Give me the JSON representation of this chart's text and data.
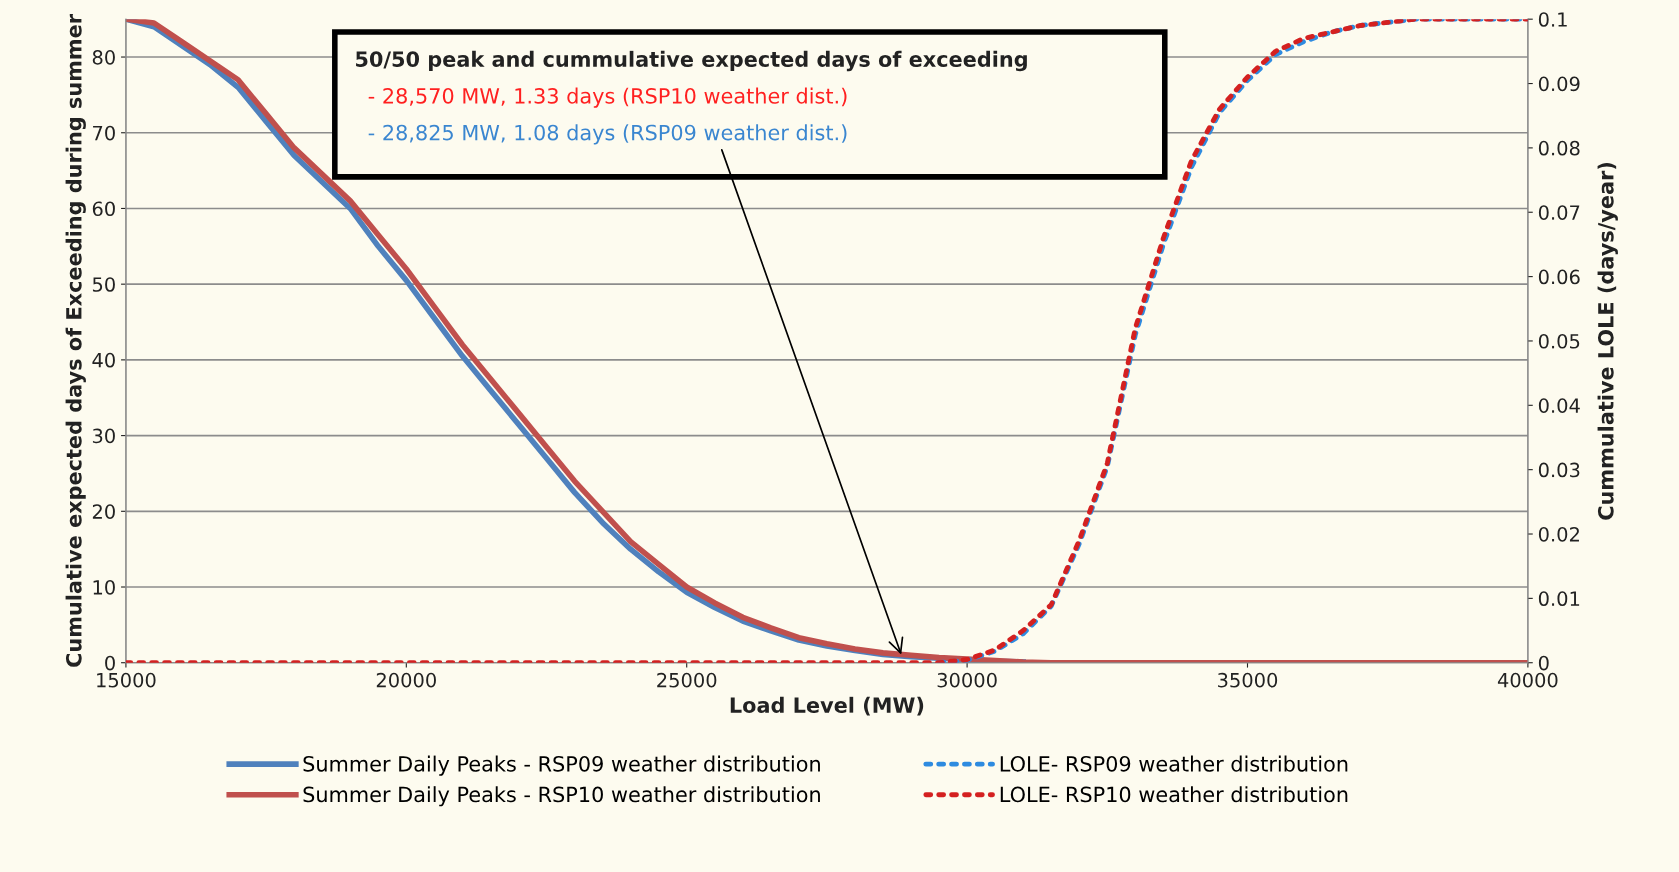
{
  "chart_data": {
    "type": "line",
    "xlabel": "Load Level (MW)",
    "ylabel": "Cumulative expected days of Exceeding during summer",
    "y2label": "Cummulative LOLE (days/year)",
    "x": [
      15000,
      15500,
      16000,
      16500,
      17000,
      17500,
      18000,
      18500,
      19000,
      19500,
      20000,
      20500,
      21000,
      21500,
      22000,
      22500,
      23000,
      23500,
      24000,
      24500,
      25000,
      25500,
      26000,
      26500,
      27000,
      27500,
      28000,
      28500,
      29000,
      29500,
      30000,
      30500,
      31000,
      31500,
      32000,
      32500,
      33000,
      33500,
      34000,
      34500,
      35000,
      35500,
      36000,
      36500,
      37000,
      37500,
      38000,
      39000,
      40000
    ],
    "series": [
      {
        "name": "Summer Daily Peaks - RSP09 weather distribution",
        "color": "#4f81bd",
        "line_style": "solid",
        "values": [
          85,
          84,
          81.5,
          79,
          76,
          71.5,
          67,
          63.5,
          60,
          55,
          50.5,
          45.5,
          40.5,
          36,
          31.5,
          27,
          22.5,
          18.5,
          15,
          12,
          9.3,
          7.3,
          5.5,
          4.2,
          3,
          2.2,
          1.6,
          1.1,
          0.8,
          0.6,
          0.4,
          0.2,
          0.1,
          null,
          null,
          null,
          null,
          null,
          null,
          null,
          null,
          null,
          null,
          null,
          null,
          null,
          null,
          null,
          null
        ]
      },
      {
        "name": "Summer Daily Peaks - RSP10 weather distribution",
        "color": "#c0504d",
        "line_style": "solid",
        "values": [
          85,
          84.5,
          82,
          79.5,
          77,
          72.5,
          68,
          64.5,
          61,
          56.5,
          52,
          47,
          42,
          37.5,
          33,
          28.5,
          24,
          20,
          16,
          13,
          10,
          7.9,
          6,
          4.6,
          3.3,
          2.5,
          1.8,
          1.3,
          1,
          0.7,
          0.5,
          0.3,
          0.1,
          0,
          0,
          0,
          0,
          0,
          0,
          0,
          0,
          0,
          0,
          0,
          0,
          0,
          0,
          0,
          0
        ]
      },
      {
        "name": "LOLE- RSP09 weather distribution",
        "color": "#2e8be0",
        "line_style": "dotted",
        "axis": "y2",
        "values": [
          null,
          null,
          null,
          null,
          null,
          null,
          null,
          null,
          null,
          null,
          null,
          null,
          null,
          null,
          null,
          null,
          null,
          null,
          null,
          null,
          null,
          null,
          null,
          null,
          null,
          null,
          null,
          null,
          null,
          0,
          0.0004,
          0.0018,
          0.0045,
          0.0088,
          0.0185,
          0.0305,
          0.051,
          0.065,
          0.077,
          0.0855,
          0.0905,
          0.0945,
          0.0965,
          0.098,
          0.099,
          0.0995,
          0.1,
          0.1,
          0.1
        ]
      },
      {
        "name": "LOLE- RSP10 weather distribution",
        "color": "#d42020",
        "line_style": "dotted",
        "axis": "y2",
        "values": [
          0,
          0,
          0,
          0,
          0,
          0,
          0,
          0,
          0,
          0,
          0,
          0,
          0,
          0,
          0,
          0,
          0,
          0,
          0,
          0,
          0,
          0,
          0,
          0,
          0,
          0,
          0,
          0,
          0,
          0,
          0.0005,
          0.002,
          0.005,
          0.009,
          0.019,
          0.031,
          0.052,
          0.066,
          0.078,
          0.086,
          0.091,
          0.095,
          0.097,
          0.098,
          0.099,
          0.0995,
          0.1,
          0.1,
          0.1
        ]
      }
    ],
    "xlim": [
      15000,
      40000
    ],
    "xticks": [
      15000,
      20000,
      25000,
      30000,
      35000,
      40000
    ],
    "ylim": [
      0,
      85
    ],
    "yticks": [
      0,
      10,
      20,
      30,
      40,
      50,
      60,
      70,
      80
    ],
    "y2lim": [
      0,
      0.1
    ],
    "y2ticks": [
      0,
      0.01,
      0.02,
      0.03,
      0.04,
      0.05,
      0.06,
      0.07,
      0.08,
      0.09,
      0.1
    ],
    "grid": "y",
    "legend": "bottom",
    "marker": "none",
    "annotations": [
      "50/50 peak and cummulative expected days of exceeding",
      "  - 28,570 MW, 1.33 days (RSP10 weather dist.)",
      {
        "text": "  - 28,825 MW, 1.08 days (RSP09 weather dist.)",
        "x": 28825,
        "y": 1.08
      }
    ]
  }
}
